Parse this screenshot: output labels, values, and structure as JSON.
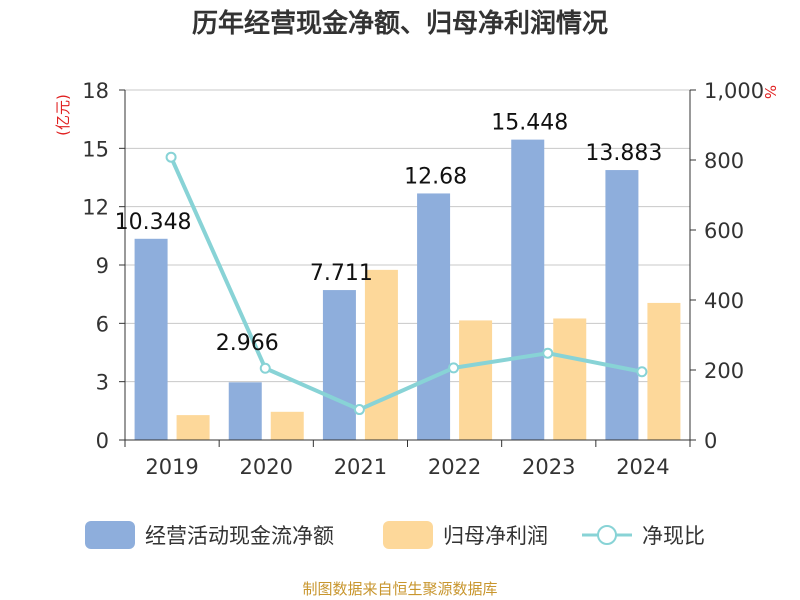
{
  "chart_data": {
    "type": "bar",
    "title": "历年经营现金净额、归母净利润情况",
    "categories": [
      "2019",
      "2020",
      "2021",
      "2022",
      "2023",
      "2024"
    ],
    "series": [
      {
        "name": "经营活动现金流净额",
        "kind": "bar",
        "axis": "left",
        "color": "#8eaedc",
        "values": [
          10.348,
          2.966,
          7.711,
          12.68,
          15.448,
          13.883
        ],
        "labels": [
          "10.348",
          "2.966",
          "7.711",
          "12.68",
          "15.448",
          "13.883"
        ]
      },
      {
        "name": "归母净利润",
        "kind": "bar",
        "axis": "left",
        "color": "#fdd89a",
        "values": [
          1.28,
          1.45,
          8.75,
          6.15,
          6.25,
          7.05
        ]
      },
      {
        "name": "净现比",
        "kind": "line",
        "axis": "right",
        "color": "#88d3d6",
        "values": [
          808,
          205,
          87,
          206,
          248,
          195
        ]
      }
    ],
    "y_left": {
      "unit": "(亿元)",
      "ylim": [
        0,
        18
      ],
      "ticks": [
        "0",
        "3",
        "6",
        "9",
        "12",
        "15",
        "18"
      ]
    },
    "y_right": {
      "unit": "%",
      "ylim": [
        0,
        1000
      ],
      "ticks": [
        "0",
        "200",
        "400",
        "600",
        "800",
        "1,000"
      ]
    },
    "grid": true,
    "legend_position": "bottom"
  },
  "source": "制图数据来自恒生聚源数据库"
}
